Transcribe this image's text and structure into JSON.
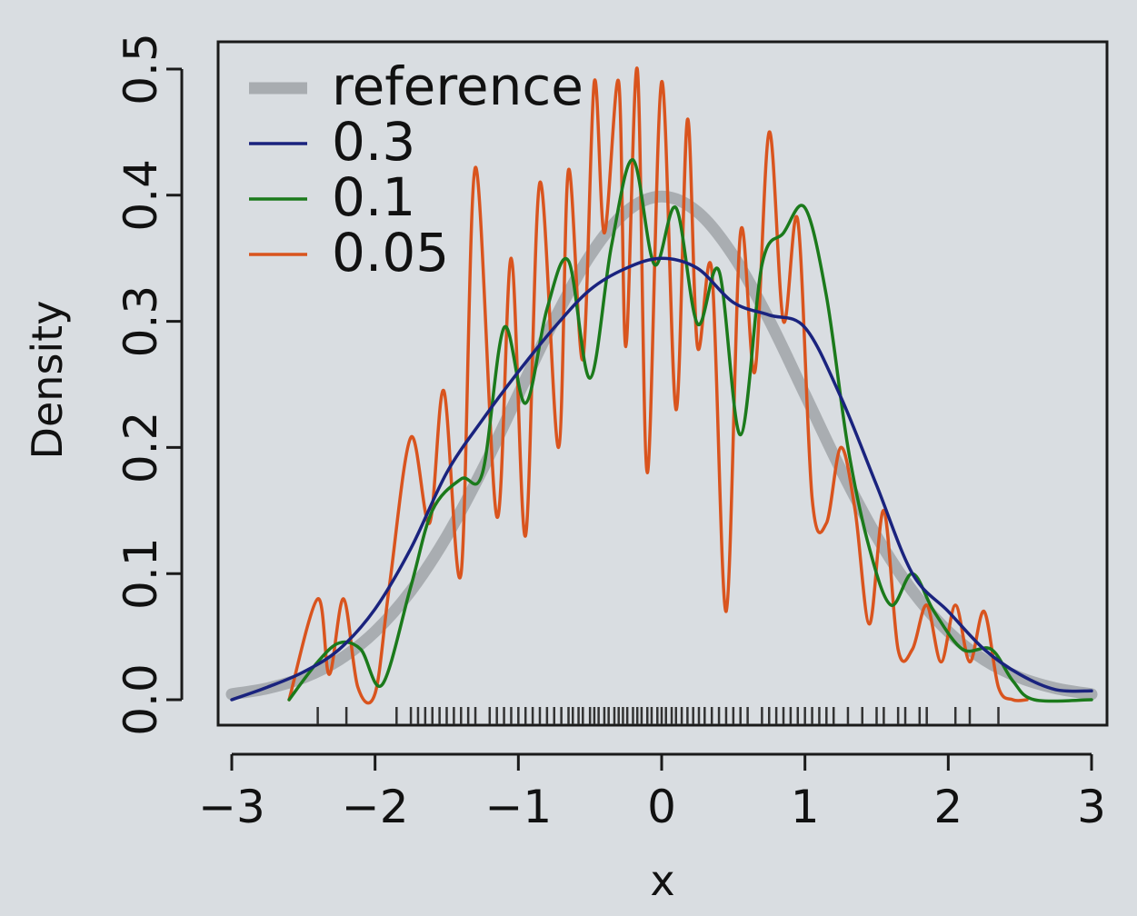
{
  "chart_data": {
    "type": "line",
    "xlabel": "x",
    "ylabel": "Density",
    "xlim": [
      -3,
      3
    ],
    "ylim": [
      0,
      0.5
    ],
    "x_ticks": [
      -3,
      -2,
      -1,
      0,
      1,
      2,
      3
    ],
    "x_tick_labels": [
      "−3",
      "−2",
      "−1",
      "0",
      "1",
      "2",
      "3"
    ],
    "y_ticks": [
      0.0,
      0.1,
      0.2,
      0.3,
      0.4,
      0.5
    ],
    "y_tick_labels": [
      "0.0",
      "0.1",
      "0.2",
      "0.3",
      "0.4",
      "0.5"
    ],
    "grid": false,
    "legend_position": "top-left",
    "legend": [
      "reference",
      "0.3",
      "0.1",
      "0.05"
    ],
    "series": [
      {
        "name": "reference",
        "color": "#a0a4a8",
        "x": [
          -3.0,
          -2.75,
          -2.5,
          -2.25,
          -2.0,
          -1.75,
          -1.5,
          -1.25,
          -1.0,
          -0.75,
          -0.5,
          -0.25,
          0.0,
          0.25,
          0.5,
          0.75,
          1.0,
          1.25,
          1.5,
          1.75,
          2.0,
          2.25,
          2.5,
          2.75,
          3.0
        ],
        "y": [
          0.0044,
          0.0091,
          0.0175,
          0.0317,
          0.054,
          0.0863,
          0.1295,
          0.1826,
          0.242,
          0.3011,
          0.3521,
          0.3867,
          0.3989,
          0.3867,
          0.3521,
          0.3011,
          0.242,
          0.1826,
          0.1295,
          0.0863,
          0.054,
          0.0317,
          0.0175,
          0.0091,
          0.0044
        ]
      },
      {
        "name": "0.3",
        "color": "#1a237e",
        "x": [
          -3.0,
          -2.75,
          -2.5,
          -2.25,
          -2.0,
          -1.75,
          -1.5,
          -1.25,
          -1.0,
          -0.75,
          -0.5,
          -0.25,
          0.0,
          0.25,
          0.5,
          0.75,
          1.0,
          1.25,
          1.5,
          1.75,
          2.0,
          2.25,
          2.5,
          2.75,
          3.0
        ],
        "y": [
          0.0,
          0.01,
          0.022,
          0.04,
          0.072,
          0.12,
          0.18,
          0.222,
          0.26,
          0.295,
          0.325,
          0.342,
          0.35,
          0.342,
          0.315,
          0.305,
          0.295,
          0.24,
          0.17,
          0.1,
          0.07,
          0.04,
          0.02,
          0.008,
          0.007
        ]
      },
      {
        "name": "0.1",
        "color": "#1b7a1b",
        "x": [
          -2.6,
          -2.4,
          -2.25,
          -2.1,
          -1.95,
          -1.75,
          -1.6,
          -1.4,
          -1.25,
          -1.1,
          -0.95,
          -0.8,
          -0.65,
          -0.5,
          -0.35,
          -0.2,
          -0.05,
          0.1,
          0.25,
          0.4,
          0.55,
          0.7,
          0.85,
          1.0,
          1.15,
          1.3,
          1.45,
          1.6,
          1.75,
          1.9,
          2.1,
          2.3,
          2.45,
          2.6,
          3.0
        ],
        "y": [
          0.0,
          0.03,
          0.045,
          0.04,
          0.012,
          0.09,
          0.15,
          0.175,
          0.18,
          0.295,
          0.235,
          0.31,
          0.348,
          0.255,
          0.36,
          0.428,
          0.345,
          0.39,
          0.298,
          0.34,
          0.21,
          0.345,
          0.37,
          0.39,
          0.32,
          0.2,
          0.12,
          0.075,
          0.1,
          0.07,
          0.04,
          0.04,
          0.015,
          0.0,
          0.0
        ]
      },
      {
        "name": "0.05",
        "color": "#d9541e",
        "x": [
          -2.6,
          -2.4,
          -2.32,
          -2.22,
          -2.12,
          -2.0,
          -1.9,
          -1.75,
          -1.62,
          -1.52,
          -1.4,
          -1.3,
          -1.15,
          -1.05,
          -0.95,
          -0.85,
          -0.72,
          -0.65,
          -0.55,
          -0.47,
          -0.4,
          -0.3,
          -0.25,
          -0.17,
          -0.1,
          0.0,
          0.1,
          0.18,
          0.25,
          0.35,
          0.45,
          0.55,
          0.65,
          0.75,
          0.85,
          0.95,
          1.05,
          1.15,
          1.25,
          1.35,
          1.45,
          1.55,
          1.65,
          1.75,
          1.85,
          1.95,
          2.05,
          2.15,
          2.25,
          2.35,
          2.45,
          2.55
        ],
        "y": [
          0.0,
          0.08,
          0.02,
          0.08,
          0.01,
          0.005,
          0.09,
          0.208,
          0.14,
          0.245,
          0.1,
          0.422,
          0.145,
          0.35,
          0.13,
          0.41,
          0.2,
          0.42,
          0.27,
          0.49,
          0.37,
          0.49,
          0.28,
          0.5,
          0.18,
          0.49,
          0.23,
          0.46,
          0.28,
          0.34,
          0.07,
          0.37,
          0.26,
          0.45,
          0.3,
          0.38,
          0.16,
          0.14,
          0.2,
          0.15,
          0.06,
          0.15,
          0.04,
          0.04,
          0.075,
          0.03,
          0.075,
          0.03,
          0.07,
          0.01,
          0.0,
          0.0
        ]
      }
    ],
    "rug": [
      -2.4,
      -2.2,
      -1.85,
      -1.75,
      -1.7,
      -1.65,
      -1.6,
      -1.55,
      -1.5,
      -1.45,
      -1.4,
      -1.35,
      -1.3,
      -1.2,
      -1.15,
      -1.1,
      -1.05,
      -1.0,
      -0.95,
      -0.9,
      -0.85,
      -0.8,
      -0.75,
      -0.7,
      -0.65,
      -0.62,
      -0.58,
      -0.55,
      -0.5,
      -0.47,
      -0.44,
      -0.4,
      -0.37,
      -0.33,
      -0.3,
      -0.27,
      -0.24,
      -0.2,
      -0.17,
      -0.14,
      -0.1,
      -0.07,
      -0.03,
      0.0,
      0.03,
      0.07,
      0.1,
      0.14,
      0.18,
      0.22,
      0.26,
      0.3,
      0.35,
      0.4,
      0.45,
      0.5,
      0.55,
      0.6,
      0.7,
      0.75,
      0.8,
      0.85,
      0.9,
      0.95,
      1.0,
      1.05,
      1.1,
      1.15,
      1.2,
      1.3,
      1.4,
      1.5,
      1.55,
      1.65,
      1.7,
      1.8,
      1.85,
      2.05,
      2.15,
      2.35
    ]
  }
}
